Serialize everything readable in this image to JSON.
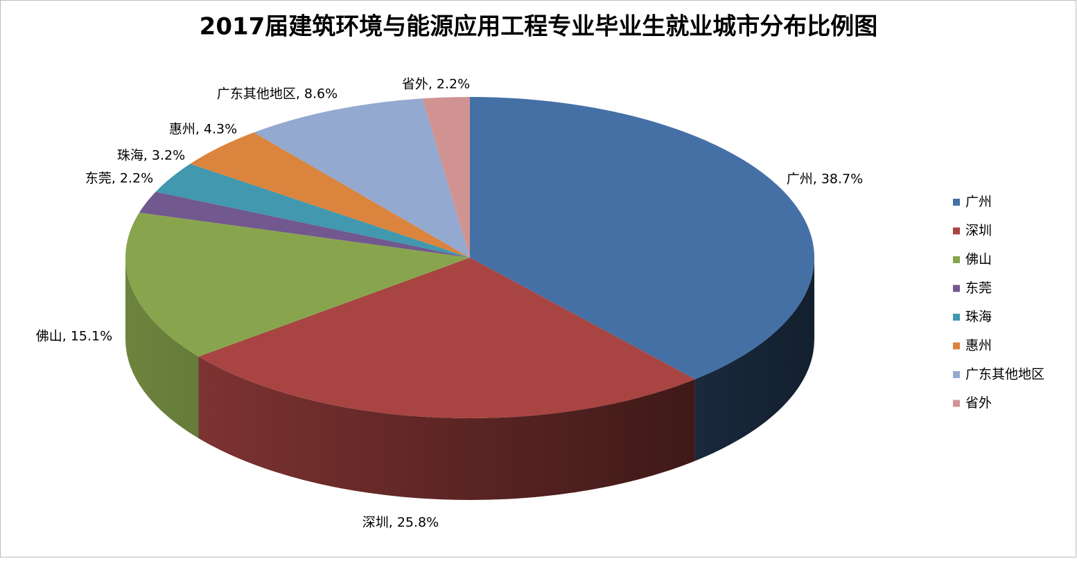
{
  "chart_data": {
    "type": "pie3d",
    "title": "2017届建筑环境与能源应用工程专业毕业生就业城市分布比例图",
    "categories": [
      "广州",
      "深圳",
      "佛山",
      "东莞",
      "珠海",
      "惠州",
      "广东其他地区",
      "省外"
    ],
    "values": [
      38.7,
      25.8,
      15.1,
      2.2,
      3.2,
      4.3,
      8.6,
      2.2
    ],
    "value_labels": [
      "广州, 38.7%",
      "深圳, 25.8%",
      "佛山, 15.1%",
      "东莞, 2.2%",
      "珠海, 3.2%",
      "惠州, 4.3%",
      "广东其他地区, 8.6%",
      "省外, 2.2%"
    ],
    "colors": [
      "#4570a6",
      "#a84442",
      "#88a54d",
      "#71588f",
      "#4198af",
      "#db843d",
      "#93a9cf",
      "#d19392"
    ],
    "legend": "right"
  }
}
